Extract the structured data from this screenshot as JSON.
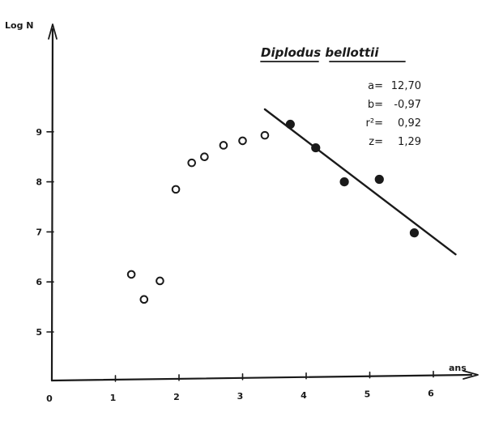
{
  "chart_data": {
    "type": "scatter",
    "title": "Diplodus bellottii",
    "xlabel": "ans",
    "ylabel": "Log N",
    "xlim": [
      0,
      6.3
    ],
    "ylim": [
      4.3,
      10.3
    ],
    "x_ticks": [
      0,
      1,
      2,
      3,
      4,
      5,
      6
    ],
    "x_tick_labels": [
      "0",
      "1",
      "2",
      "3",
      "4",
      "5",
      "6"
    ],
    "y_ticks": [
      5,
      6,
      7,
      8,
      9
    ],
    "y_tick_labels": [
      "5",
      "6",
      "7",
      "8",
      "9"
    ],
    "grid": false,
    "legend": "none",
    "stats": {
      "a": {
        "label": "a=",
        "value": "12,70"
      },
      "b": {
        "label": "b=",
        "value": "-0,97"
      },
      "r2": {
        "label": "r²=",
        "value": "0,92"
      },
      "z": {
        "label": "z=",
        "value": "1,29"
      }
    },
    "series": [
      {
        "marker": "open",
        "x": [
          1.25,
          1.45,
          1.7,
          1.95,
          2.2,
          2.4,
          2.7,
          3.0,
          3.35
        ],
        "y": [
          6.15,
          5.65,
          6.02,
          7.85,
          8.38,
          8.5,
          8.73,
          8.82,
          8.93
        ]
      },
      {
        "marker": "filled",
        "x": [
          3.75,
          4.15,
          4.6,
          5.15,
          5.7
        ],
        "y": [
          9.15,
          8.68,
          8.0,
          8.05,
          6.98
        ]
      }
    ],
    "fit_line": {
      "x": [
        3.35,
        6.35
      ],
      "y": [
        9.45,
        6.55
      ]
    }
  }
}
